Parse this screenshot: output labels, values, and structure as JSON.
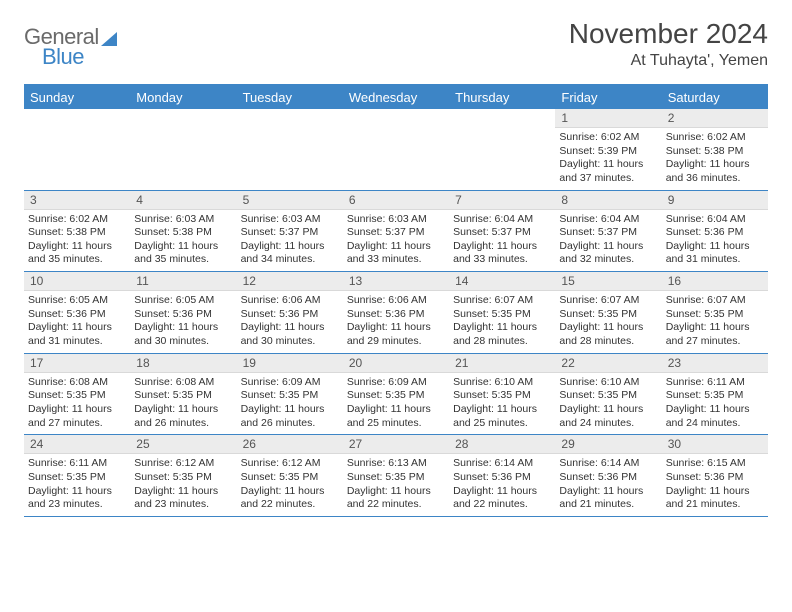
{
  "brand": {
    "part1": "General",
    "part2": "Blue",
    "color1": "#6a6a6a",
    "color2": "#3d85c6"
  },
  "header": {
    "title": "November 2024",
    "location": "At Tuhayta', Yemen"
  },
  "theme": {
    "accent": "#3d85c6",
    "daybar_bg": "#ececec",
    "text": "#333333",
    "background": "#ffffff"
  },
  "days_of_week": [
    "Sunday",
    "Monday",
    "Tuesday",
    "Wednesday",
    "Thursday",
    "Friday",
    "Saturday"
  ],
  "weeks": [
    [
      null,
      null,
      null,
      null,
      null,
      {
        "n": "1",
        "sr": "Sunrise: 6:02 AM",
        "ss": "Sunset: 5:39 PM",
        "d1": "Daylight: 11 hours",
        "d2": "and 37 minutes."
      },
      {
        "n": "2",
        "sr": "Sunrise: 6:02 AM",
        "ss": "Sunset: 5:38 PM",
        "d1": "Daylight: 11 hours",
        "d2": "and 36 minutes."
      }
    ],
    [
      {
        "n": "3",
        "sr": "Sunrise: 6:02 AM",
        "ss": "Sunset: 5:38 PM",
        "d1": "Daylight: 11 hours",
        "d2": "and 35 minutes."
      },
      {
        "n": "4",
        "sr": "Sunrise: 6:03 AM",
        "ss": "Sunset: 5:38 PM",
        "d1": "Daylight: 11 hours",
        "d2": "and 35 minutes."
      },
      {
        "n": "5",
        "sr": "Sunrise: 6:03 AM",
        "ss": "Sunset: 5:37 PM",
        "d1": "Daylight: 11 hours",
        "d2": "and 34 minutes."
      },
      {
        "n": "6",
        "sr": "Sunrise: 6:03 AM",
        "ss": "Sunset: 5:37 PM",
        "d1": "Daylight: 11 hours",
        "d2": "and 33 minutes."
      },
      {
        "n": "7",
        "sr": "Sunrise: 6:04 AM",
        "ss": "Sunset: 5:37 PM",
        "d1": "Daylight: 11 hours",
        "d2": "and 33 minutes."
      },
      {
        "n": "8",
        "sr": "Sunrise: 6:04 AM",
        "ss": "Sunset: 5:37 PM",
        "d1": "Daylight: 11 hours",
        "d2": "and 32 minutes."
      },
      {
        "n": "9",
        "sr": "Sunrise: 6:04 AM",
        "ss": "Sunset: 5:36 PM",
        "d1": "Daylight: 11 hours",
        "d2": "and 31 minutes."
      }
    ],
    [
      {
        "n": "10",
        "sr": "Sunrise: 6:05 AM",
        "ss": "Sunset: 5:36 PM",
        "d1": "Daylight: 11 hours",
        "d2": "and 31 minutes."
      },
      {
        "n": "11",
        "sr": "Sunrise: 6:05 AM",
        "ss": "Sunset: 5:36 PM",
        "d1": "Daylight: 11 hours",
        "d2": "and 30 minutes."
      },
      {
        "n": "12",
        "sr": "Sunrise: 6:06 AM",
        "ss": "Sunset: 5:36 PM",
        "d1": "Daylight: 11 hours",
        "d2": "and 30 minutes."
      },
      {
        "n": "13",
        "sr": "Sunrise: 6:06 AM",
        "ss": "Sunset: 5:36 PM",
        "d1": "Daylight: 11 hours",
        "d2": "and 29 minutes."
      },
      {
        "n": "14",
        "sr": "Sunrise: 6:07 AM",
        "ss": "Sunset: 5:35 PM",
        "d1": "Daylight: 11 hours",
        "d2": "and 28 minutes."
      },
      {
        "n": "15",
        "sr": "Sunrise: 6:07 AM",
        "ss": "Sunset: 5:35 PM",
        "d1": "Daylight: 11 hours",
        "d2": "and 28 minutes."
      },
      {
        "n": "16",
        "sr": "Sunrise: 6:07 AM",
        "ss": "Sunset: 5:35 PM",
        "d1": "Daylight: 11 hours",
        "d2": "and 27 minutes."
      }
    ],
    [
      {
        "n": "17",
        "sr": "Sunrise: 6:08 AM",
        "ss": "Sunset: 5:35 PM",
        "d1": "Daylight: 11 hours",
        "d2": "and 27 minutes."
      },
      {
        "n": "18",
        "sr": "Sunrise: 6:08 AM",
        "ss": "Sunset: 5:35 PM",
        "d1": "Daylight: 11 hours",
        "d2": "and 26 minutes."
      },
      {
        "n": "19",
        "sr": "Sunrise: 6:09 AM",
        "ss": "Sunset: 5:35 PM",
        "d1": "Daylight: 11 hours",
        "d2": "and 26 minutes."
      },
      {
        "n": "20",
        "sr": "Sunrise: 6:09 AM",
        "ss": "Sunset: 5:35 PM",
        "d1": "Daylight: 11 hours",
        "d2": "and 25 minutes."
      },
      {
        "n": "21",
        "sr": "Sunrise: 6:10 AM",
        "ss": "Sunset: 5:35 PM",
        "d1": "Daylight: 11 hours",
        "d2": "and 25 minutes."
      },
      {
        "n": "22",
        "sr": "Sunrise: 6:10 AM",
        "ss": "Sunset: 5:35 PM",
        "d1": "Daylight: 11 hours",
        "d2": "and 24 minutes."
      },
      {
        "n": "23",
        "sr": "Sunrise: 6:11 AM",
        "ss": "Sunset: 5:35 PM",
        "d1": "Daylight: 11 hours",
        "d2": "and 24 minutes."
      }
    ],
    [
      {
        "n": "24",
        "sr": "Sunrise: 6:11 AM",
        "ss": "Sunset: 5:35 PM",
        "d1": "Daylight: 11 hours",
        "d2": "and 23 minutes."
      },
      {
        "n": "25",
        "sr": "Sunrise: 6:12 AM",
        "ss": "Sunset: 5:35 PM",
        "d1": "Daylight: 11 hours",
        "d2": "and 23 minutes."
      },
      {
        "n": "26",
        "sr": "Sunrise: 6:12 AM",
        "ss": "Sunset: 5:35 PM",
        "d1": "Daylight: 11 hours",
        "d2": "and 22 minutes."
      },
      {
        "n": "27",
        "sr": "Sunrise: 6:13 AM",
        "ss": "Sunset: 5:35 PM",
        "d1": "Daylight: 11 hours",
        "d2": "and 22 minutes."
      },
      {
        "n": "28",
        "sr": "Sunrise: 6:14 AM",
        "ss": "Sunset: 5:36 PM",
        "d1": "Daylight: 11 hours",
        "d2": "and 22 minutes."
      },
      {
        "n": "29",
        "sr": "Sunrise: 6:14 AM",
        "ss": "Sunset: 5:36 PM",
        "d1": "Daylight: 11 hours",
        "d2": "and 21 minutes."
      },
      {
        "n": "30",
        "sr": "Sunrise: 6:15 AM",
        "ss": "Sunset: 5:36 PM",
        "d1": "Daylight: 11 hours",
        "d2": "and 21 minutes."
      }
    ]
  ]
}
